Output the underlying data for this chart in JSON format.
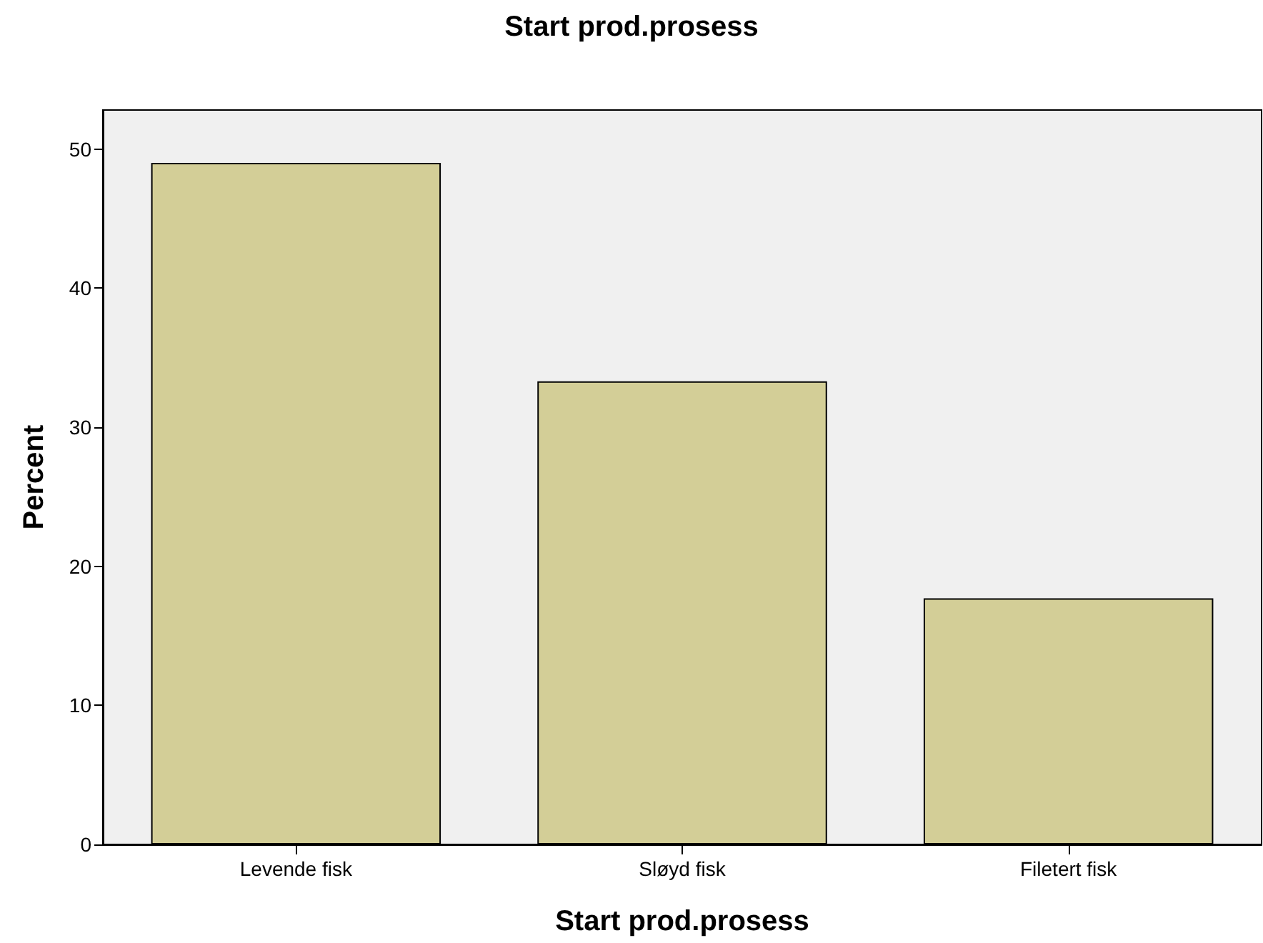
{
  "chart_data": {
    "type": "bar",
    "title": "Start prod.prosess",
    "xlabel": "Start prod.prosess",
    "ylabel": "Percent",
    "categories": [
      "Levende fisk",
      "Sløyd fisk",
      "Filetert fisk"
    ],
    "values": [
      49.0,
      33.3,
      17.7
    ],
    "color": "#d3ce97",
    "ylim": [
      0,
      52.8
    ],
    "yticks": [
      0,
      10,
      20,
      30,
      40,
      50
    ],
    "grid": false
  }
}
